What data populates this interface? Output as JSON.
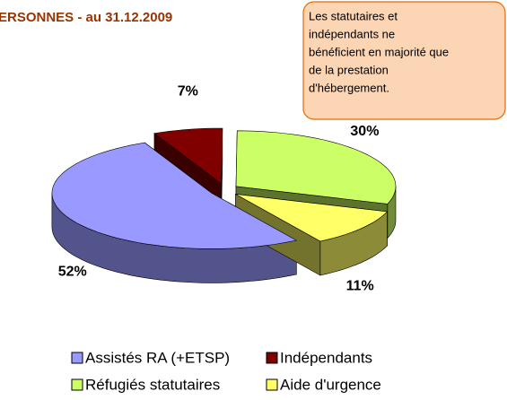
{
  "chart_data": {
    "type": "pie3d",
    "title": "ERSONNES - au 31.12.2009",
    "annotation": [
      "Les statutaires et",
      "indépendants ne",
      "bénéficient en majorité que",
      "de la prestation",
      "d'hébergement."
    ],
    "categories": [
      "Assistés RA (+ETSP)",
      "Indépendants",
      "Réfugiés statutaires",
      "Aide d'urgence"
    ],
    "values": [
      52,
      7,
      30,
      11
    ],
    "value_labels": [
      "52%",
      "7%",
      "30%",
      "11%"
    ],
    "colors": [
      "#9999ff",
      "#800000",
      "#ccff66",
      "#ffff66"
    ],
    "start_angle": 148
  }
}
